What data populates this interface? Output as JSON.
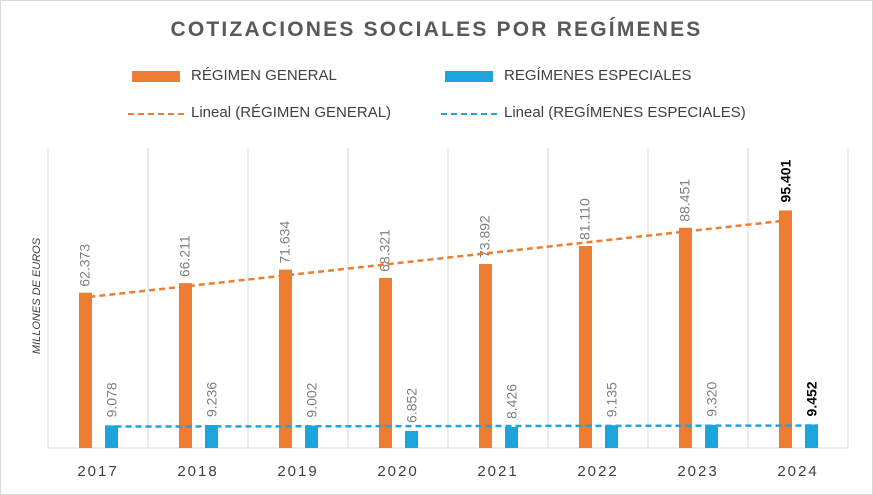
{
  "chart_data": {
    "type": "bar",
    "title": "COTIZACIONES SOCIALES POR REGÍMENES",
    "ylabel": "MILLONES DE EUROS",
    "xlabel": "",
    "categories": [
      "2017",
      "2018",
      "2019",
      "2020",
      "2021",
      "2022",
      "2023",
      "2024"
    ],
    "series": [
      {
        "name": "RÉGIMEN GENERAL",
        "color": "#ed7d31",
        "values": [
          62373,
          66211,
          71634,
          68321,
          73892,
          81110,
          88451,
          95401
        ],
        "labels": [
          "62.373",
          "66.211",
          "71.634",
          "68.321",
          "73.892",
          "81.110",
          "88.451",
          "95.401"
        ]
      },
      {
        "name": "REGÍMENES ESPECIALES",
        "color": "#1ca5dd",
        "values": [
          9078,
          9236,
          9002,
          6852,
          8426,
          9135,
          9320,
          9452
        ],
        "labels": [
          "9.078",
          "9.236",
          "9.002",
          "6.852",
          "8.426",
          "9.135",
          "9.320",
          "9.452"
        ]
      }
    ],
    "trendlines": [
      {
        "name": "Lineal (RÉGIMEN GENERAL)",
        "series": "RÉGIMEN GENERAL",
        "color": "#ed7d31"
      },
      {
        "name": "Lineal (REGÍMENES ESPECIALES)",
        "series": "REGÍMENES ESPECIALES",
        "color": "#1ca5dd"
      }
    ],
    "ylim": [
      0,
      100000
    ],
    "grid": "vertical",
    "legend": "top",
    "highlighted_category": "2024"
  }
}
